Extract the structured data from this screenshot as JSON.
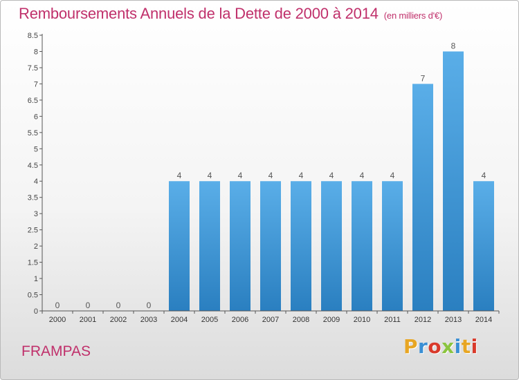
{
  "title": "Remboursements Annuels de la Dette de 2000 à 2014",
  "unit": "(en milliers d'€)",
  "commune": "FRAMPAS",
  "logo_text": "Proxiti",
  "chart_data": {
    "type": "bar",
    "categories": [
      "2000",
      "2001",
      "2002",
      "2003",
      "2004",
      "2005",
      "2006",
      "2007",
      "2008",
      "2009",
      "2010",
      "2011",
      "2012",
      "2013",
      "2014"
    ],
    "values": [
      0,
      0,
      0,
      0,
      4,
      4,
      4,
      4,
      4,
      4,
      4,
      4,
      7,
      8,
      4
    ],
    "data_labels": [
      "0",
      "0",
      "0",
      "0",
      "4",
      "4",
      "4",
      "4",
      "4",
      "4",
      "4",
      "4",
      "7",
      "8",
      "4"
    ],
    "ylim": [
      0,
      8.5
    ],
    "yticks": [
      0,
      0.5,
      1,
      1.5,
      2,
      2.5,
      3,
      3.5,
      4,
      4.5,
      5,
      5.5,
      6,
      6.5,
      7,
      7.5,
      8,
      8.5
    ],
    "ytick_labels": [
      "0",
      "0.5",
      "1",
      "1.5",
      "2",
      "2.5",
      "3",
      "3.5",
      "4",
      "4.5",
      "5",
      "5.5",
      "6",
      "6.5",
      "7",
      "7.5",
      "8",
      "8.5"
    ],
    "grid": false,
    "bar_color_top": "#5aaee8",
    "bar_color_bottom": "#2a7fc0"
  }
}
